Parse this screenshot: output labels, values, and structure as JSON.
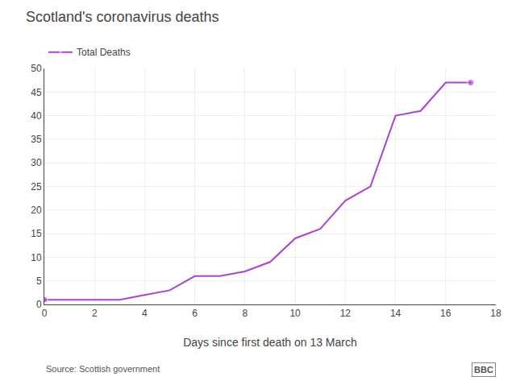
{
  "chart_data": {
    "type": "line",
    "title": "Scotland's coronavirus deaths",
    "xlabel": "Days since first death on 13 March",
    "x": [
      0,
      1,
      2,
      3,
      4,
      5,
      6,
      7,
      8,
      9,
      10,
      11,
      12,
      13,
      14,
      15,
      16,
      17
    ],
    "series": [
      {
        "name": "Total Deaths",
        "color": "#aa44cc",
        "values": [
          1,
          1,
          1,
          1,
          2,
          3,
          6,
          6,
          7,
          9,
          14,
          16,
          22,
          25,
          40,
          41,
          47,
          47
        ]
      }
    ],
    "xlim": [
      0,
      18
    ],
    "ylim": [
      0,
      50
    ],
    "xticks": [
      0,
      2,
      4,
      6,
      8,
      10,
      12,
      14,
      16,
      18
    ],
    "yticks": [
      0,
      5,
      10,
      15,
      20,
      25,
      30,
      35,
      40,
      45,
      50
    ],
    "grid": true,
    "legend": "upper left",
    "annotations": [
      "Source: Scottish government",
      "BBC"
    ]
  }
}
